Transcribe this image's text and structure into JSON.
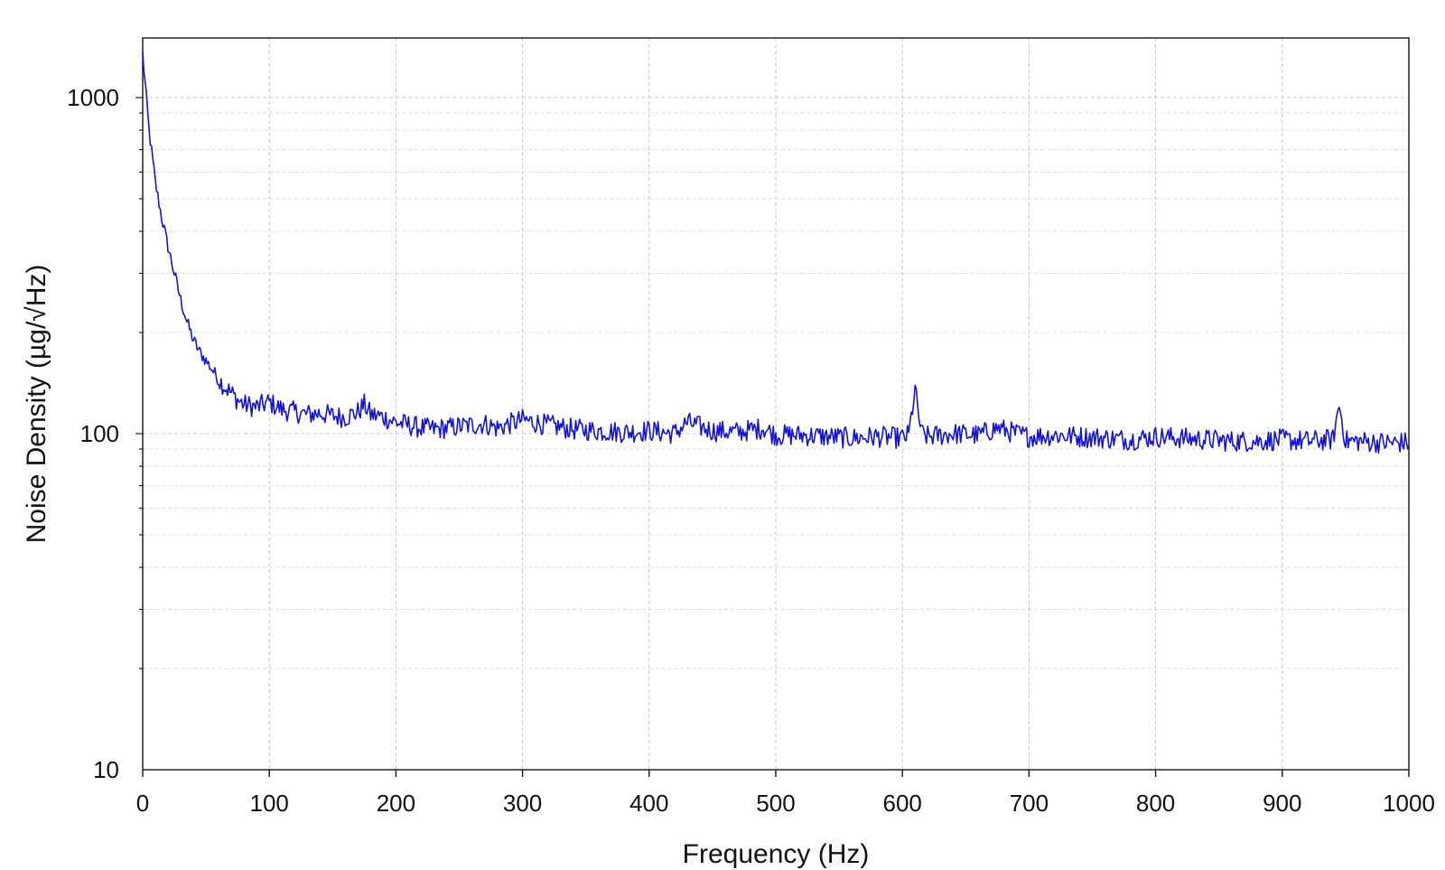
{
  "chart_data": {
    "type": "line",
    "title": "",
    "xlabel": "Frequency (Hz)",
    "ylabel": "Noise Density (µg/√Hz)",
    "xlim": [
      0,
      1000
    ],
    "ylim": [
      10,
      1500
    ],
    "y_scale": "log",
    "grid": true,
    "legend": "none",
    "x_ticks": [
      "0",
      "100",
      "200",
      "300",
      "400",
      "500",
      "600",
      "700",
      "800",
      "900",
      "1000"
    ],
    "y_ticks": [
      "10",
      "100",
      "1000"
    ],
    "series": [
      {
        "color": "#1414d2",
        "x": [
          0,
          5,
          10,
          15,
          20,
          25,
          30,
          35,
          40,
          45,
          50,
          55,
          60,
          65,
          70,
          75,
          80,
          90,
          100,
          110,
          120,
          130,
          140,
          150,
          160,
          170,
          175,
          180,
          190,
          200,
          210,
          220,
          230,
          250,
          270,
          280,
          300,
          320,
          340,
          360,
          380,
          400,
          420,
          430,
          450,
          470,
          490,
          500,
          520,
          540,
          560,
          580,
          600,
          605,
          610,
          615,
          620,
          640,
          660,
          675,
          690,
          700,
          720,
          740,
          760,
          780,
          800,
          820,
          840,
          860,
          880,
          900,
          920,
          940,
          945,
          950,
          960,
          980,
          1000
        ],
        "y": [
          1350,
          800,
          560,
          440,
          360,
          300,
          250,
          215,
          190,
          175,
          165,
          155,
          145,
          138,
          132,
          126,
          122,
          120,
          124,
          118,
          116,
          114,
          115,
          113,
          112,
          116,
          122,
          114,
          112,
          108,
          106,
          104,
          103,
          105,
          107,
          104,
          110,
          106,
          103,
          102,
          101,
          102,
          100,
          108,
          102,
          101,
          104,
          99,
          99,
          98,
          97,
          98,
          97,
          99,
          135,
          100,
          98,
          100,
          99,
          104,
          100,
          98,
          99,
          98,
          97,
          96,
          98,
          97,
          96,
          95,
          95,
          96,
          95,
          96,
          122,
          95,
          95,
          94,
          94
        ]
      }
    ]
  }
}
